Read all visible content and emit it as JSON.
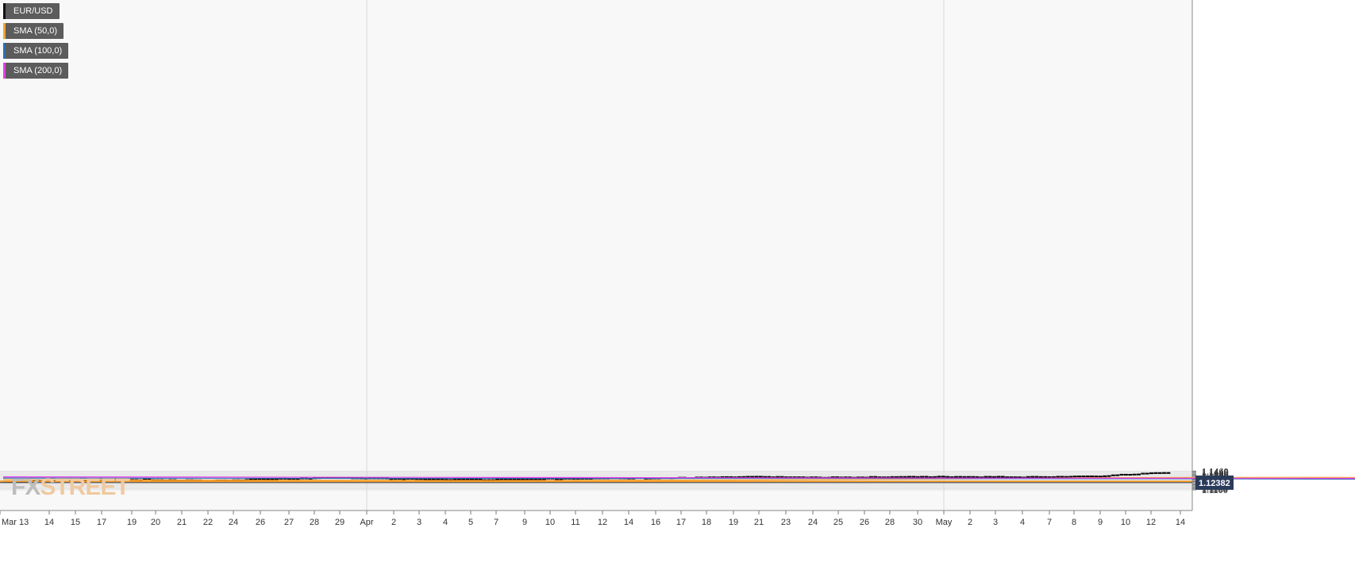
{
  "legend": {
    "items": [
      {
        "label": "EUR/USD",
        "color": "#111111"
      },
      {
        "label": "SMA (50,0)",
        "color": "#f7a234"
      },
      {
        "label": "SMA (100,0)",
        "color": "#2e6db4"
      },
      {
        "label": "SMA (200,0)",
        "color": "#e83de8"
      }
    ]
  },
  "logo": {
    "part1": "FX",
    "part2": "STREET"
  },
  "chart_data": {
    "type": "candlestick",
    "title": "",
    "xlabel": "",
    "ylabel": "",
    "ylim": [
      1.1088,
      1.1472
    ],
    "yticks": [
      "1.1460",
      "1.1440",
      "1.1420",
      "1.1400",
      "1.1380",
      "1.1360",
      "1.1340",
      "1.1320",
      "1.1300",
      "1.1280",
      "1.1260",
      "1.1240",
      "1.1220",
      "1.1200",
      "1.1180",
      "1.1160",
      "1.1140",
      "1.1120",
      "1.1100"
    ],
    "x_labels": [
      "Mar 13",
      "14",
      "15",
      "17",
      "19",
      "20",
      "21",
      "22",
      "24",
      "26",
      "27",
      "28",
      "29",
      "Apr",
      "2",
      "3",
      "4",
      "5",
      "7",
      "9",
      "10",
      "11",
      "12",
      "14",
      "16",
      "17",
      "18",
      "19",
      "21",
      "23",
      "24",
      "25",
      "26",
      "28",
      "30",
      "May",
      "2",
      "3",
      "4",
      "7",
      "8",
      "9",
      "10",
      "12",
      "14"
    ],
    "grid": true,
    "current_price": "1.12382",
    "resistance_level": 1.1261,
    "colors": {
      "up_candle": "#ffffff",
      "down_candle": "#000000",
      "resistance": "#f79a1e",
      "current_line": "#2a3a5a",
      "price_tag": "#2a3a5a",
      "grid": "#e4e4e4",
      "background": "#f8f8f8"
    },
    "price_path": [
      1.1262,
      1.1278,
      1.13,
      1.1282,
      1.1315,
      1.1335,
      1.131,
      1.13,
      1.1318,
      1.1325,
      1.1335,
      1.1352,
      1.134,
      1.135,
      1.1356,
      1.135,
      1.136,
      1.143,
      1.1415,
      1.1398,
      1.137,
      1.1388,
      1.1372,
      1.1292,
      1.1302,
      1.1312,
      1.1325,
      1.1318,
      1.1302,
      1.1272,
      1.1255,
      1.1268,
      1.1245,
      1.1225,
      1.123,
      1.122,
      1.1232,
      1.1212,
      1.12,
      1.1192,
      1.1225,
      1.1245,
      1.1243,
      1.1222,
      1.122,
      1.1224,
      1.1245,
      1.1262,
      1.1268,
      1.1272,
      1.1264,
      1.1262,
      1.13,
      1.1312,
      1.1318,
      1.131,
      1.1315,
      1.13,
      1.13,
      1.1272,
      1.124,
      1.1232,
      1.124,
      1.125,
      1.1262,
      1.1252,
      1.1222,
      1.1215,
      1.119,
      1.1155,
      1.1138,
      1.1122,
      1.114,
      1.115,
      1.1172,
      1.12,
      1.1222,
      1.124,
      1.122,
      1.1212,
      1.1185,
      1.1162,
      1.1185,
      1.12,
      1.121,
      1.1188,
      1.12,
      1.1198,
      1.1212,
      1.1232,
      1.1232,
      1.124,
      1.1238
    ],
    "series": [
      {
        "name": "SMA (50,0)",
        "color": "#f7a234",
        "points": [
          [
            0,
            1.1296
          ],
          [
            3,
            1.1284
          ],
          [
            8,
            1.128
          ],
          [
            11,
            1.129
          ],
          [
            14,
            1.1312
          ],
          [
            16,
            1.1334
          ],
          [
            19,
            1.134
          ],
          [
            22,
            1.1336
          ],
          [
            25,
            1.131
          ],
          [
            28,
            1.1272
          ],
          [
            30,
            1.1248
          ],
          [
            32,
            1.1234
          ],
          [
            34,
            1.123
          ],
          [
            36,
            1.124
          ],
          [
            38,
            1.1244
          ],
          [
            40,
            1.1254
          ],
          [
            43,
            1.1268
          ],
          [
            45,
            1.1278
          ],
          [
            47,
            1.1288
          ],
          [
            49,
            1.1285
          ],
          [
            52,
            1.1278
          ],
          [
            55,
            1.1275
          ],
          [
            56,
            1.1265
          ],
          [
            58,
            1.1245
          ],
          [
            60,
            1.122
          ],
          [
            62,
            1.1203
          ],
          [
            64,
            1.1195
          ],
          [
            66,
            1.119
          ],
          [
            68,
            1.1182
          ],
          [
            70,
            1.1182
          ],
          [
            73,
            1.1187
          ],
          [
            76,
            1.1193
          ],
          [
            78,
            1.1198
          ],
          [
            80,
            1.1203
          ],
          [
            82,
            1.1204
          ],
          [
            83,
            1.1203
          ]
        ]
      },
      {
        "name": "SMA (100,0)",
        "color": "#2e6db4",
        "points": [
          [
            0,
            1.1326
          ],
          [
            5,
            1.132
          ],
          [
            12,
            1.132
          ],
          [
            17,
            1.1314
          ],
          [
            22,
            1.13
          ],
          [
            28,
            1.1298
          ],
          [
            35,
            1.1284
          ],
          [
            40,
            1.1276
          ],
          [
            45,
            1.1264
          ],
          [
            50,
            1.1262
          ],
          [
            56,
            1.1264
          ],
          [
            58,
            1.126
          ],
          [
            63,
            1.1245
          ],
          [
            67,
            1.1238
          ],
          [
            70,
            1.1222
          ],
          [
            73,
            1.1212
          ],
          [
            76,
            1.1205
          ],
          [
            80,
            1.1201
          ],
          [
            83,
            1.12
          ]
        ]
      },
      {
        "name": "SMA (200,0)",
        "color": "#e83de8",
        "points": [
          [
            0,
            1.135
          ],
          [
            6,
            1.134
          ],
          [
            12,
            1.133
          ],
          [
            20,
            1.132
          ],
          [
            27,
            1.1314
          ],
          [
            35,
            1.1303
          ],
          [
            41,
            1.1294
          ],
          [
            47,
            1.1286
          ],
          [
            52,
            1.1281
          ],
          [
            58,
            1.1278
          ],
          [
            62,
            1.127
          ],
          [
            67,
            1.126
          ],
          [
            70,
            1.1252
          ],
          [
            73,
            1.1241
          ],
          [
            76,
            1.1233
          ],
          [
            79,
            1.1229
          ],
          [
            82,
            1.1228
          ],
          [
            83,
            1.1228
          ]
        ]
      }
    ]
  }
}
